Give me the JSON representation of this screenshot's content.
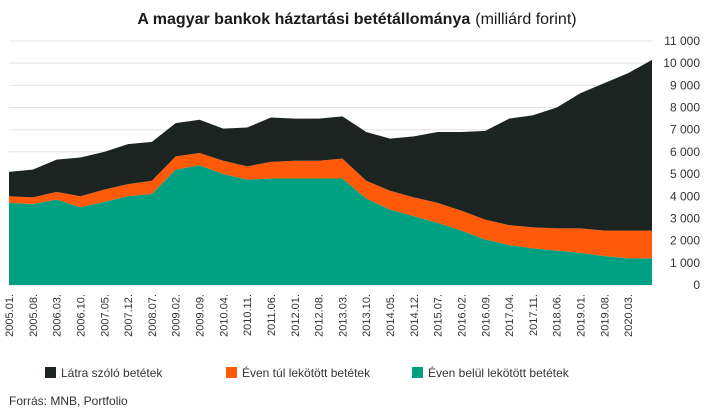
{
  "chart_data": {
    "type": "area",
    "stacked": true,
    "title_main": "A magyar bankok háztartási betétállománya",
    "title_unit": "(milliárd forint)",
    "source": "Forrás: MNB, Portfolio",
    "ylim": [
      0,
      11000
    ],
    "yticks": [
      "0",
      "1 000",
      "2 000",
      "3 000",
      "4 000",
      "5 000",
      "6 000",
      "7 000",
      "8 000",
      "9 000",
      "10 000",
      "11 000"
    ],
    "grid": true,
    "legend_position": "bottom",
    "x_tick_labels": [
      "2005.01.",
      "2005.08.",
      "2006.03.",
      "2006.10.",
      "2007.05.",
      "2007.12.",
      "2008.07.",
      "2009.02.",
      "2009.09.",
      "2010.04.",
      "2010.11.",
      "2011.06.",
      "2012.01.",
      "2012.08.",
      "2013.03.",
      "2013.10.",
      "2014.05.",
      "2014.12.",
      "2015.07.",
      "2016.02.",
      "2016.09.",
      "2017.04.",
      "2017.11.",
      "2018.06.",
      "2019.01.",
      "2019.08.",
      "2020.03."
    ],
    "x": [
      "2005.01.",
      "2005.08.",
      "2006.03.",
      "2006.10.",
      "2007.05.",
      "2007.12.",
      "2008.07.",
      "2009.02.",
      "2009.09.",
      "2010.04.",
      "2010.11.",
      "2011.06.",
      "2012.01.",
      "2012.08.",
      "2013.03.",
      "2013.10.",
      "2014.05.",
      "2014.12.",
      "2015.07.",
      "2016.02.",
      "2016.09.",
      "2017.04.",
      "2017.11.",
      "2018.06.",
      "2019.01.",
      "2019.08.",
      "2020.03.",
      "2020.06."
    ],
    "series": [
      {
        "name": "Éven belül lekötött betétek",
        "color": "#00a082",
        "values": [
          3700,
          3650,
          3850,
          3500,
          3750,
          4000,
          4100,
          5200,
          5400,
          5000,
          4750,
          4800,
          4800,
          4800,
          4800,
          3900,
          3400,
          3100,
          2800,
          2450,
          2050,
          1800,
          1650,
          1550,
          1450,
          1300,
          1200,
          1200
        ]
      },
      {
        "name": "Éven túl lekötött betétek",
        "color": "#ff5a0a",
        "values": [
          300,
          300,
          350,
          500,
          550,
          550,
          600,
          600,
          550,
          600,
          600,
          750,
          800,
          800,
          900,
          800,
          850,
          850,
          900,
          900,
          900,
          900,
          950,
          1000,
          1100,
          1150,
          1250,
          1250
        ]
      },
      {
        "name": "Látra szóló betétek",
        "color": "#1c2422",
        "values": [
          1100,
          1250,
          1450,
          1750,
          1700,
          1800,
          1750,
          1500,
          1500,
          1450,
          1750,
          2000,
          1900,
          1900,
          1900,
          2200,
          2350,
          2750,
          3200,
          3550,
          4000,
          4800,
          5050,
          5450,
          6100,
          6650,
          7100,
          7700
        ]
      }
    ]
  }
}
